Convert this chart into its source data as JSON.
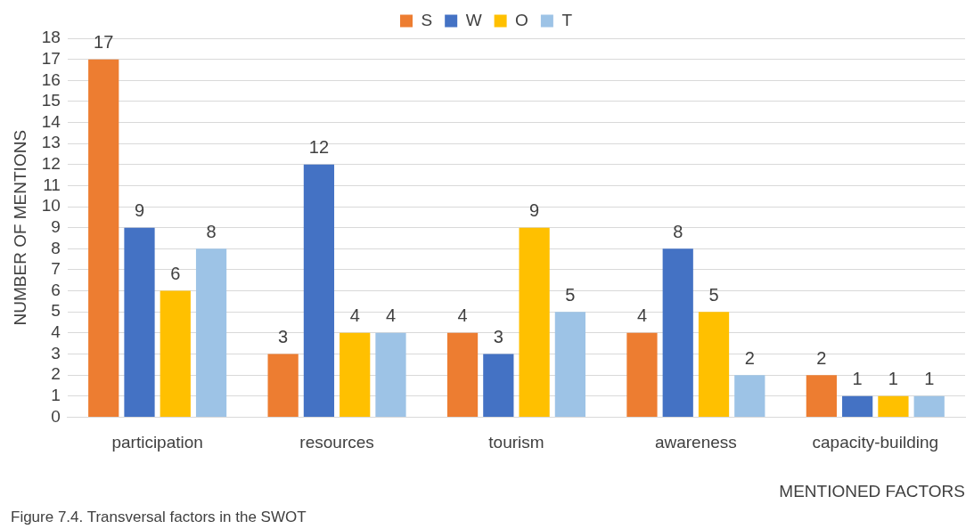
{
  "chart_data": {
    "type": "bar",
    "categories": [
      "participation",
      "resources",
      "tourism",
      "awareness",
      "capacity-building"
    ],
    "series": [
      {
        "name": "S",
        "color": "#ed7d31",
        "values": [
          17,
          3,
          4,
          4,
          2
        ]
      },
      {
        "name": "W",
        "color": "#4472c4",
        "values": [
          9,
          12,
          3,
          8,
          1
        ]
      },
      {
        "name": "O",
        "color": "#ffc000",
        "values": [
          6,
          4,
          9,
          5,
          1
        ]
      },
      {
        "name": "T",
        "color": "#9dc3e6",
        "values": [
          8,
          4,
          5,
          2,
          1
        ]
      }
    ],
    "xlabel": "MENTIONED FACTORS",
    "ylabel": "NUMBER OF MENTIONS",
    "ylim": [
      0,
      18
    ],
    "yticks": [
      0,
      1,
      2,
      3,
      4,
      5,
      6,
      7,
      8,
      9,
      10,
      11,
      12,
      13,
      14,
      15,
      16,
      17,
      18
    ],
    "grid": "y",
    "legend": "top",
    "data_labels": true,
    "annotations": [
      "Figure 7.4. Transversal factors in the SWOT"
    ]
  }
}
